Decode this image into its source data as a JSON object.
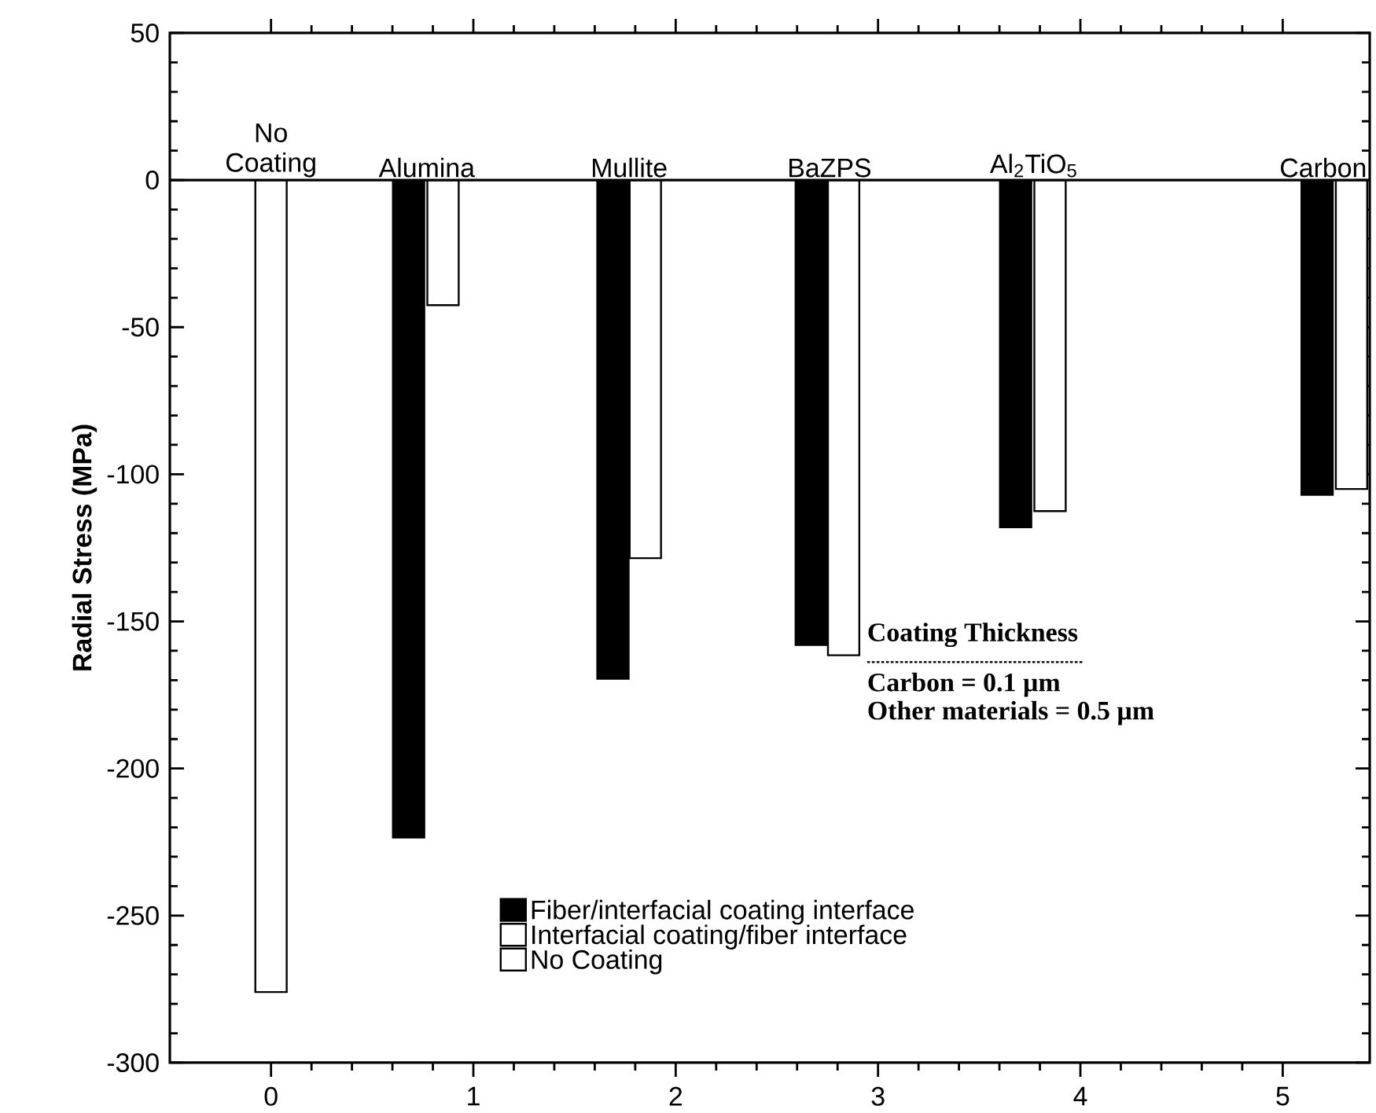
{
  "chart_data": {
    "type": "bar",
    "ylabel": "Radial Stress (MPa)",
    "series": [
      {
        "name": "Fiber/interfacial coating interface",
        "color": "#000000",
        "x": [
          0.68,
          1.69,
          2.67,
          3.68,
          5.17
        ],
        "values": [
          -223.5,
          -169.5,
          -158,
          -118,
          -107
        ]
      },
      {
        "name": "Interfacial coating/fiber interface",
        "color": "#ffffff",
        "x": [
          0.85,
          1.85,
          2.83,
          3.85,
          5.34
        ],
        "values": [
          -42.5,
          -128.5,
          -161.5,
          -112.5,
          -105
        ]
      },
      {
        "name": "No Coating",
        "color": "#ffffff",
        "x": [
          0
        ],
        "values": [
          -276
        ]
      }
    ],
    "xlim": [
      -0.5,
      5.43
    ],
    "xticks": [
      0,
      1,
      2,
      3,
      4,
      5
    ],
    "ylim": [
      -300,
      50
    ],
    "yticks": [
      -300,
      -250,
      -200,
      -150,
      -100,
      -50,
      0,
      50
    ],
    "ref_lines": [
      {
        "axis": "y",
        "value": 0,
        "color": "#000000"
      }
    ],
    "annotations": [
      {
        "text": "No Coating",
        "x": 0,
        "y": 0
      },
      {
        "text": "Alumina",
        "x": 0.77,
        "y": 0
      },
      {
        "text": "Mullite",
        "x": 1.77,
        "y": 0
      },
      {
        "text": "BaZPS",
        "x": 2.76,
        "y": 0
      },
      {
        "text": "Al$_{2}$TiO$_{5}$",
        "x": 3.77,
        "y": 0
      },
      {
        "text": "Carbon",
        "x": 5.2,
        "y": 0
      },
      "Coating Thickness",
      "Carbon = 0.1 µm",
      "Other materials = 0.5 µm"
    ],
    "legend": "bottom",
    "grid": false
  }
}
